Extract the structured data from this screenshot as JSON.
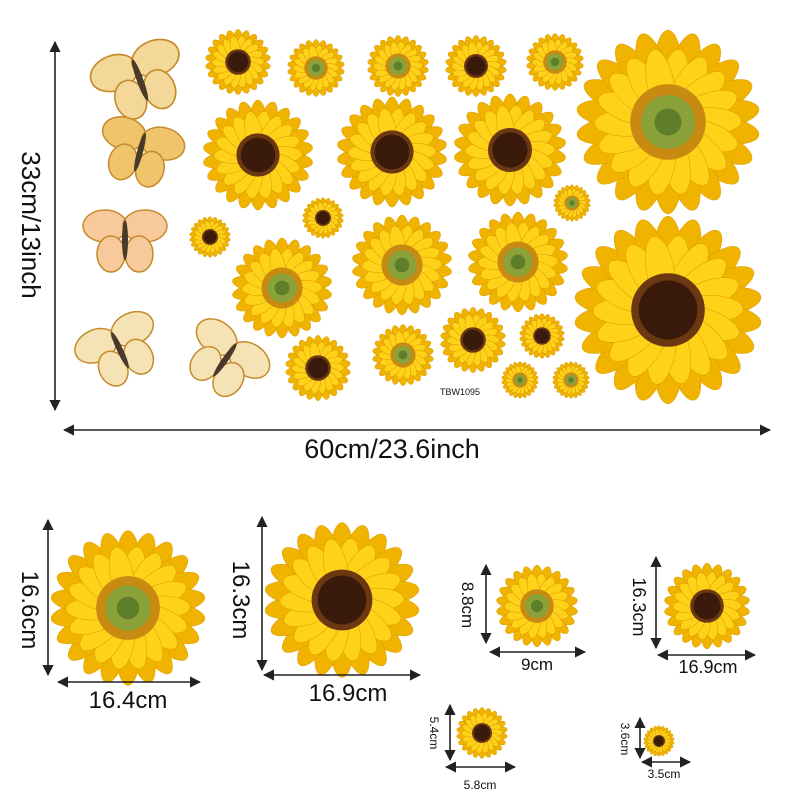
{
  "sheet": {
    "height_label": "33cm/13inch",
    "width_label": "60cm/23.6inch",
    "code": "TBW1095"
  },
  "sizes": [
    {
      "height": "16.6cm",
      "width": "16.4cm"
    },
    {
      "height": "16.3cm",
      "width": "16.9cm"
    },
    {
      "height": "8.8cm",
      "width": "9cm"
    },
    {
      "height": "16.3cm",
      "width": "16.9cm"
    },
    {
      "height": "5.4cm",
      "width": "5.8cm"
    },
    {
      "height": "3.6cm",
      "width": "3.5cm"
    }
  ]
}
